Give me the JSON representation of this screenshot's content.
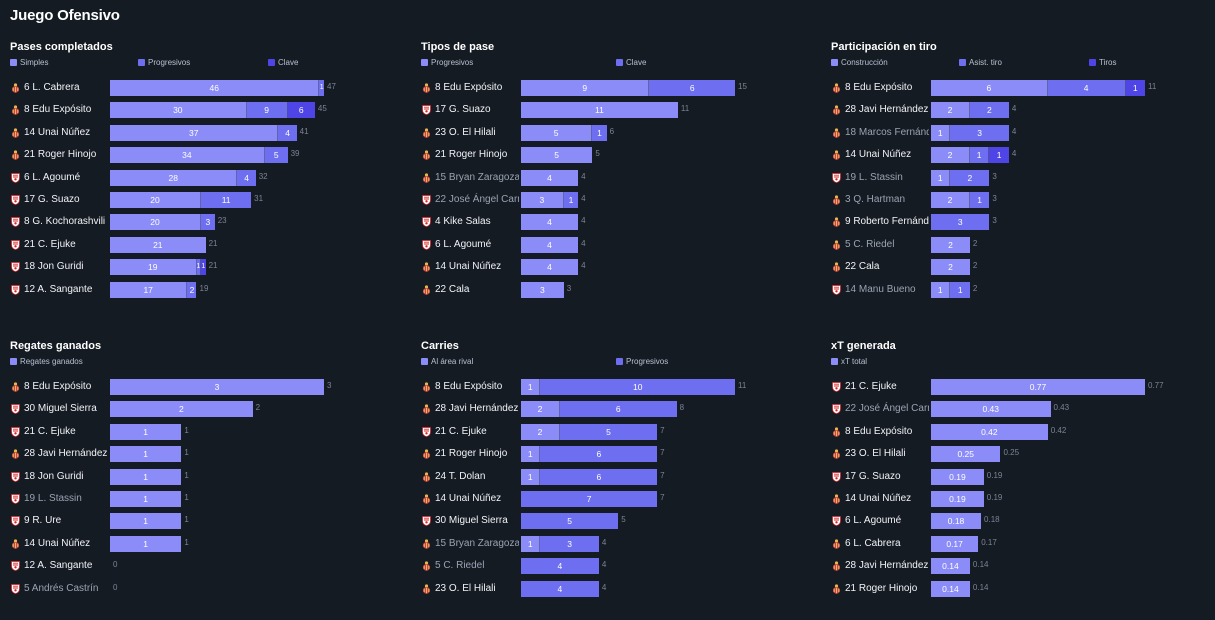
{
  "page_title": "Juego Ofensivo",
  "colors": {
    "background": "#151b23",
    "c1": "#8b8cf8",
    "c2": "#6e6ef0",
    "c3": "#4f44e6",
    "total_text": "#7b8494"
  },
  "chart_data": [
    {
      "type": "bar",
      "title": "Pases completados",
      "orientation": "horizontal-stacked",
      "series": [
        {
          "name": "Simples",
          "color": "#8b8cf8"
        },
        {
          "name": "Progresivos",
          "color": "#6e6ef0"
        },
        {
          "name": "Clave",
          "color": "#4f44e6"
        }
      ],
      "xlim": [
        0,
        47
      ],
      "rows": [
        {
          "player": "6 L. Cabrera",
          "team": "esp",
          "values": [
            46,
            1,
            0
          ],
          "total": "47"
        },
        {
          "player": "8 Edu Expósito",
          "team": "esp",
          "values": [
            30,
            9,
            6
          ],
          "total": "45"
        },
        {
          "player": "14 Unai Núñez",
          "team": "esp",
          "values": [
            37,
            4,
            0
          ],
          "total": "41"
        },
        {
          "player": "21 Roger Hinojo",
          "team": "esp",
          "values": [
            34,
            5,
            0
          ],
          "total": "39"
        },
        {
          "player": "6 L. Agoumé",
          "team": "sev",
          "values": [
            28,
            4,
            0
          ],
          "total": "32"
        },
        {
          "player": "17 G. Suazo",
          "team": "sev",
          "values": [
            20,
            11,
            0
          ],
          "total": "31"
        },
        {
          "player": "8 G. Kochorashvili",
          "team": "sev",
          "values": [
            20,
            3,
            0
          ],
          "total": "23"
        },
        {
          "player": "21 C. Ejuke",
          "team": "sev",
          "values": [
            21,
            0,
            0
          ],
          "total": "21"
        },
        {
          "player": "18 Jon Guridi",
          "team": "sev",
          "values": [
            19,
            1,
            1
          ],
          "total": "21"
        },
        {
          "player": "12 A. Sangante",
          "team": "sev",
          "values": [
            17,
            2,
            0
          ],
          "total": "19"
        }
      ]
    },
    {
      "type": "bar",
      "title": "Tipos de pase",
      "orientation": "horizontal-stacked",
      "series": [
        {
          "name": "Progresivos",
          "color": "#8b8cf8"
        },
        {
          "name": "Clave",
          "color": "#6e6ef0"
        }
      ],
      "xlim": [
        0,
        15
      ],
      "rows": [
        {
          "player": "8 Edu Expósito",
          "team": "esp",
          "values": [
            9,
            6
          ],
          "total": "15"
        },
        {
          "player": "17 G. Suazo",
          "team": "sev",
          "values": [
            11,
            0
          ],
          "total": "11"
        },
        {
          "player": "23 O. El Hilali",
          "team": "esp",
          "values": [
            5,
            1
          ],
          "total": "6"
        },
        {
          "player": "21 Roger Hinojo",
          "team": "esp",
          "values": [
            5,
            0
          ],
          "total": "5"
        },
        {
          "player": "15 Bryan Zaragoza",
          "team": "esp",
          "dim": true,
          "values": [
            4,
            0
          ],
          "total": "4"
        },
        {
          "player": "22 José Ángel Carmona",
          "team": "sev",
          "dim": true,
          "values": [
            3,
            1
          ],
          "total": "4"
        },
        {
          "player": "4 Kike Salas",
          "team": "sev",
          "values": [
            4,
            0
          ],
          "total": "4"
        },
        {
          "player": "6 L. Agoumé",
          "team": "sev",
          "values": [
            4,
            0
          ],
          "total": "4"
        },
        {
          "player": "14 Unai Núñez",
          "team": "esp",
          "values": [
            4,
            0
          ],
          "total": "4"
        },
        {
          "player": "22 Cala",
          "team": "esp",
          "values": [
            3,
            0
          ],
          "total": "3"
        }
      ]
    },
    {
      "type": "bar",
      "title": "Participación en tiro",
      "orientation": "horizontal-stacked",
      "series": [
        {
          "name": "Construcción",
          "color": "#8b8cf8"
        },
        {
          "name": "Asist. tiro",
          "color": "#6e6ef0"
        },
        {
          "name": "Tiros",
          "color": "#4f44e6"
        }
      ],
      "xlim": [
        0,
        11
      ],
      "rows": [
        {
          "player": "8 Edu Expósito",
          "team": "esp",
          "values": [
            6,
            4,
            1
          ],
          "total": "11"
        },
        {
          "player": "28 Javi Hernández",
          "team": "esp",
          "values": [
            2,
            2,
            0
          ],
          "total": "4"
        },
        {
          "player": "18 Marcos Fernández",
          "team": "esp",
          "dim": true,
          "values": [
            1,
            3,
            0
          ],
          "total": "4"
        },
        {
          "player": "14 Unai Núñez",
          "team": "esp",
          "values": [
            2,
            1,
            1
          ],
          "total": "4"
        },
        {
          "player": "19 L. Stassin",
          "team": "sev",
          "dim": true,
          "values": [
            1,
            2,
            0
          ],
          "total": "3"
        },
        {
          "player": "3 Q. Hartman",
          "team": "esp",
          "dim": true,
          "values": [
            2,
            1,
            0
          ],
          "total": "3"
        },
        {
          "player": "9 Roberto Fernández",
          "team": "esp",
          "values": [
            0,
            3,
            0
          ],
          "total": "3"
        },
        {
          "player": "5 C. Riedel",
          "team": "esp",
          "dim": true,
          "values": [
            2,
            0,
            0
          ],
          "total": "2"
        },
        {
          "player": "22 Cala",
          "team": "esp",
          "values": [
            2,
            0,
            0
          ],
          "total": "2"
        },
        {
          "player": "14 Manu Bueno",
          "team": "sev",
          "dim": true,
          "values": [
            1,
            1,
            0
          ],
          "total": "2"
        }
      ]
    },
    {
      "type": "bar",
      "title": "Regates ganados",
      "orientation": "horizontal-stacked",
      "series": [
        {
          "name": "Regates ganados",
          "color": "#8b8cf8"
        }
      ],
      "xlim": [
        0,
        3
      ],
      "rows": [
        {
          "player": "8 Edu Expósito",
          "team": "esp",
          "values": [
            3
          ],
          "total": "3"
        },
        {
          "player": "30 Miguel Sierra",
          "team": "sev",
          "values": [
            2
          ],
          "total": "2"
        },
        {
          "player": "21 C. Ejuke",
          "team": "sev",
          "values": [
            1
          ],
          "total": "1"
        },
        {
          "player": "28 Javi Hernández",
          "team": "esp",
          "values": [
            1
          ],
          "total": "1"
        },
        {
          "player": "18 Jon Guridi",
          "team": "sev",
          "values": [
            1
          ],
          "total": "1"
        },
        {
          "player": "19 L. Stassin",
          "team": "sev",
          "dim": true,
          "values": [
            1
          ],
          "total": "1"
        },
        {
          "player": "9 R. Ure",
          "team": "sev",
          "values": [
            1
          ],
          "total": "1"
        },
        {
          "player": "14 Unai Núñez",
          "team": "esp",
          "values": [
            1
          ],
          "total": "1"
        },
        {
          "player": "12 A. Sangante",
          "team": "sev",
          "values": [
            0
          ],
          "total": "0"
        },
        {
          "player": "5 Andrés Castrín",
          "team": "sev",
          "dim": true,
          "values": [
            0
          ],
          "total": "0"
        }
      ]
    },
    {
      "type": "bar",
      "title": "Carries",
      "orientation": "horizontal-stacked",
      "series": [
        {
          "name": "Al área rival",
          "color": "#8b8cf8"
        },
        {
          "name": "Progresivos",
          "color": "#6e6ef0"
        }
      ],
      "xlim": [
        0,
        11
      ],
      "rows": [
        {
          "player": "8 Edu Expósito",
          "team": "esp",
          "values": [
            1,
            10
          ],
          "total": "11"
        },
        {
          "player": "28 Javi Hernández",
          "team": "esp",
          "values": [
            2,
            6
          ],
          "total": "8"
        },
        {
          "player": "21 C. Ejuke",
          "team": "sev",
          "values": [
            2,
            5
          ],
          "total": "7"
        },
        {
          "player": "21 Roger Hinojo",
          "team": "esp",
          "values": [
            1,
            6
          ],
          "total": "7"
        },
        {
          "player": "24 T. Dolan",
          "team": "esp",
          "values": [
            1,
            6
          ],
          "total": "7"
        },
        {
          "player": "14 Unai Núñez",
          "team": "esp",
          "values": [
            0,
            7
          ],
          "total": "7"
        },
        {
          "player": "30 Miguel Sierra",
          "team": "sev",
          "values": [
            0,
            5
          ],
          "total": "5"
        },
        {
          "player": "15 Bryan Zaragoza",
          "team": "esp",
          "dim": true,
          "values": [
            1,
            3
          ],
          "total": "4"
        },
        {
          "player": "5 C. Riedel",
          "team": "esp",
          "dim": true,
          "values": [
            0,
            4
          ],
          "total": "4"
        },
        {
          "player": "23 O. El Hilali",
          "team": "esp",
          "values": [
            0,
            4
          ],
          "total": "4"
        }
      ]
    },
    {
      "type": "bar",
      "title": "xT generada",
      "orientation": "horizontal",
      "series": [
        {
          "name": "xT total",
          "color": "#8b8cf8"
        }
      ],
      "xlim": [
        0,
        0.77
      ],
      "rows": [
        {
          "player": "21 C. Ejuke",
          "team": "sev",
          "values": [
            0.77
          ],
          "total": "0.77"
        },
        {
          "player": "22 José Ángel Carmona",
          "team": "sev",
          "dim": true,
          "values": [
            0.43
          ],
          "total": "0.43"
        },
        {
          "player": "8 Edu Expósito",
          "team": "esp",
          "values": [
            0.42
          ],
          "total": "0.42"
        },
        {
          "player": "23 O. El Hilali",
          "team": "esp",
          "values": [
            0.25
          ],
          "total": "0.25"
        },
        {
          "player": "17 G. Suazo",
          "team": "sev",
          "values": [
            0.19
          ],
          "total": "0.19"
        },
        {
          "player": "14 Unai Núñez",
          "team": "esp",
          "values": [
            0.19
          ],
          "total": "0.19"
        },
        {
          "player": "6 L. Agoumé",
          "team": "sev",
          "values": [
            0.18
          ],
          "total": "0.18"
        },
        {
          "player": "6 L. Cabrera",
          "team": "esp",
          "values": [
            0.17
          ],
          "total": "0.17"
        },
        {
          "player": "28 Javi Hernández",
          "team": "esp",
          "values": [
            0.14
          ],
          "total": "0.14"
        },
        {
          "player": "21 Roger Hinojo",
          "team": "esp",
          "values": [
            0.14
          ],
          "total": "0.14"
        }
      ]
    }
  ]
}
